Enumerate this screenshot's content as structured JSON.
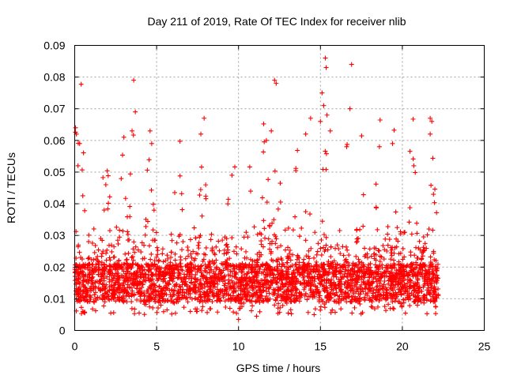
{
  "chart_data": {
    "type": "scatter",
    "title": "Day 211 of 2019, Rate Of TEC Index for receiver nlib",
    "xlabel": "GPS time / hours",
    "ylabel": "ROTI / TECUs",
    "xlim": [
      0,
      25
    ],
    "ylim": [
      0,
      0.09
    ],
    "x_ticks": [
      "0",
      "5",
      "10",
      "15",
      "20",
      "25"
    ],
    "y_ticks": [
      "0",
      "0.01",
      "0.02",
      "0.03",
      "0.04",
      "0.05",
      "0.06",
      "0.07",
      "0.08",
      "0.09"
    ],
    "grid": true,
    "marker": "plus",
    "color": "#ff0000",
    "time_range_hours": [
      0,
      22.2
    ],
    "series": [
      {
        "values_summary": "dense band 0.008-0.025 across 0-22.2 h",
        "notable_points": [
          {
            "x": 0.05,
            "y": 0.064
          },
          {
            "x": 0.1,
            "y": 0.062
          },
          {
            "x": 0.3,
            "y": 0.059
          },
          {
            "x": 0.2,
            "y": 0.052
          },
          {
            "x": 1.9,
            "y": 0.046
          },
          {
            "x": 1.8,
            "y": 0.038
          },
          {
            "x": 3.6,
            "y": 0.079
          },
          {
            "x": 3.7,
            "y": 0.069
          },
          {
            "x": 3.5,
            "y": 0.063
          },
          {
            "x": 3.0,
            "y": 0.061
          },
          {
            "x": 4.6,
            "y": 0.063
          },
          {
            "x": 4.7,
            "y": 0.059
          },
          {
            "x": 7.9,
            "y": 0.067
          },
          {
            "x": 7.7,
            "y": 0.062
          },
          {
            "x": 9.6,
            "y": 0.049
          },
          {
            "x": 10.0,
            "y": 0.0035
          },
          {
            "x": 11.1,
            "y": 0.0045
          },
          {
            "x": 11.7,
            "y": 0.06
          },
          {
            "x": 12.0,
            "y": 0.063
          },
          {
            "x": 12.2,
            "y": 0.079
          },
          {
            "x": 12.3,
            "y": 0.078
          },
          {
            "x": 14.1,
            "y": 0.062
          },
          {
            "x": 14.4,
            "y": 0.067
          },
          {
            "x": 15.1,
            "y": 0.075
          },
          {
            "x": 15.3,
            "y": 0.086
          },
          {
            "x": 15.35,
            "y": 0.083
          },
          {
            "x": 15.2,
            "y": 0.071
          },
          {
            "x": 15.4,
            "y": 0.068
          },
          {
            "x": 15.0,
            "y": 0.066
          },
          {
            "x": 15.6,
            "y": 0.063
          },
          {
            "x": 16.9,
            "y": 0.084
          },
          {
            "x": 16.8,
            "y": 0.07
          },
          {
            "x": 16.6,
            "y": 0.058
          },
          {
            "x": 18.6,
            "y": 0.058
          },
          {
            "x": 19.4,
            "y": 0.059
          },
          {
            "x": 20.7,
            "y": 0.052
          },
          {
            "x": 21.7,
            "y": 0.067
          },
          {
            "x": 21.8,
            "y": 0.066
          },
          {
            "x": 21.7,
            "y": 0.062
          },
          {
            "x": 21.9,
            "y": 0.043
          }
        ]
      }
    ]
  }
}
